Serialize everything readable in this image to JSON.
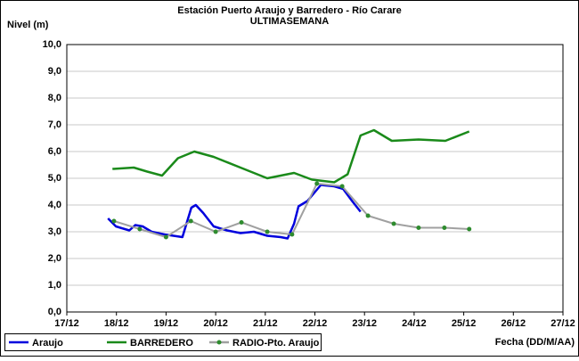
{
  "chart_data": {
    "type": "line",
    "title": "Estación Puerto Araujo y Barredero - Río Carare",
    "subtitle": "ULTIMASEMANA",
    "y_label": "Nivel (m)",
    "x_label": "Fecha (DD/M/AA)",
    "xlim": [
      0,
      10
    ],
    "xticks": [
      {
        "value": 0,
        "label": "17/12"
      },
      {
        "value": 1,
        "label": "18/12"
      },
      {
        "value": 2,
        "label": "19/12"
      },
      {
        "value": 3,
        "label": "20/12"
      },
      {
        "value": 4,
        "label": "21/12"
      },
      {
        "value": 5,
        "label": "22/12"
      },
      {
        "value": 6,
        "label": "23/12"
      },
      {
        "value": 7,
        "label": "24/12"
      },
      {
        "value": 8,
        "label": "25/12"
      },
      {
        "value": 9,
        "label": "26/12"
      },
      {
        "value": 10,
        "label": "27/12"
      }
    ],
    "ylim": [
      0,
      10
    ],
    "yticks": [
      {
        "value": 0,
        "label": "0,0"
      },
      {
        "value": 1,
        "label": "1,0"
      },
      {
        "value": 2,
        "label": "2,0"
      },
      {
        "value": 3,
        "label": "3,0"
      },
      {
        "value": 4,
        "label": "4,0"
      },
      {
        "value": 5,
        "label": "5,0"
      },
      {
        "value": 6,
        "label": "6,0"
      },
      {
        "value": 7,
        "label": "7,0"
      },
      {
        "value": 8,
        "label": "8,0"
      },
      {
        "value": 9,
        "label": "9,0"
      },
      {
        "value": 10,
        "label": "10,0"
      }
    ],
    "grid": true,
    "legend": "bottom",
    "series": [
      {
        "name": "Araujo",
        "color": "#0000dd",
        "markers": false,
        "x": [
          0.83,
          0.99,
          1.26,
          1.38,
          1.53,
          1.71,
          1.97,
          2.15,
          2.33,
          2.51,
          2.6,
          2.75,
          2.96,
          3.23,
          3.5,
          3.77,
          4.04,
          4.31,
          4.45,
          4.58,
          4.67,
          4.85,
          5.12,
          5.39,
          5.57,
          5.75,
          5.92
        ],
        "values": [
          3.5,
          3.2,
          3.05,
          3.25,
          3.2,
          3.0,
          2.9,
          2.85,
          2.8,
          3.9,
          4.0,
          3.7,
          3.2,
          3.05,
          2.95,
          3.0,
          2.85,
          2.8,
          2.75,
          3.3,
          3.95,
          4.15,
          4.75,
          4.7,
          4.6,
          4.15,
          3.75
        ]
      },
      {
        "name": "BARREDERO",
        "color": "#1a8a1a",
        "markers": false,
        "x": [
          0.92,
          1.35,
          1.62,
          1.92,
          2.24,
          2.57,
          2.96,
          3.5,
          4.04,
          4.58,
          4.94,
          5.39,
          5.66,
          5.92,
          6.19,
          6.55,
          7.09,
          7.63,
          8.11
        ],
        "values": [
          5.35,
          5.4,
          5.25,
          5.1,
          5.75,
          6.0,
          5.8,
          5.4,
          5.0,
          5.2,
          4.95,
          4.85,
          5.15,
          6.6,
          6.8,
          6.4,
          6.45,
          6.4,
          6.75
        ]
      },
      {
        "name": "RADIO-Pto. Araujo",
        "color": "#a0a0a0",
        "markers": true,
        "x": [
          0.95,
          1.47,
          2.0,
          2.5,
          3.0,
          3.52,
          4.04,
          4.54,
          5.04,
          5.55,
          6.07,
          6.59,
          7.09,
          7.61,
          8.11
        ],
        "values": [
          3.4,
          3.1,
          2.8,
          3.4,
          3.0,
          3.35,
          3.0,
          2.9,
          4.8,
          4.7,
          3.6,
          3.3,
          3.15,
          3.15,
          3.1
        ]
      }
    ]
  }
}
